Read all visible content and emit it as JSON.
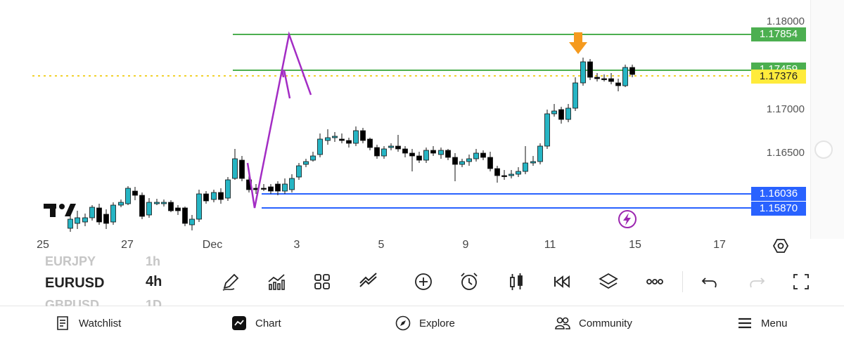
{
  "chart": {
    "symbol": "EURUSD",
    "timeframe": "4h",
    "symbol_above": "EURJPY",
    "timeframe_above": "1h",
    "symbol_below": "GBPUSD",
    "timeframe_below": "1D",
    "price_axis": [
      "1.18000",
      "1.17000",
      "1.16500"
    ],
    "price_tags": {
      "resistance_top": "1.17854",
      "resistance_hidden": "1.17459",
      "current": "1.17376",
      "support_top": "1.16036",
      "support_bottom": "1.15870"
    },
    "date_labels": [
      "25",
      "27",
      "Dec",
      "3",
      "5",
      "9",
      "11",
      "15",
      "17"
    ],
    "colors": {
      "green": "#4caf50",
      "blue": "#2962ff",
      "yellow": "#ffeb3b",
      "candle_up": "#26b5c4",
      "candle_down": "#000000",
      "purple": "#9c27b0",
      "arrow": "#ff9800"
    }
  },
  "toolbar": {
    "tools": [
      "pencil-icon",
      "indicators-icon",
      "layout-grid-icon",
      "strategies-icon",
      "add-icon",
      "alarm-icon",
      "candle-type-icon",
      "replay-icon",
      "layers-icon",
      "more-icon",
      "undo-icon",
      "redo-icon",
      "fullscreen-icon"
    ]
  },
  "bottom_nav": {
    "watchlist": "Watchlist",
    "chart": "Chart",
    "explore": "Explore",
    "community": "Community",
    "menu": "Menu"
  }
}
